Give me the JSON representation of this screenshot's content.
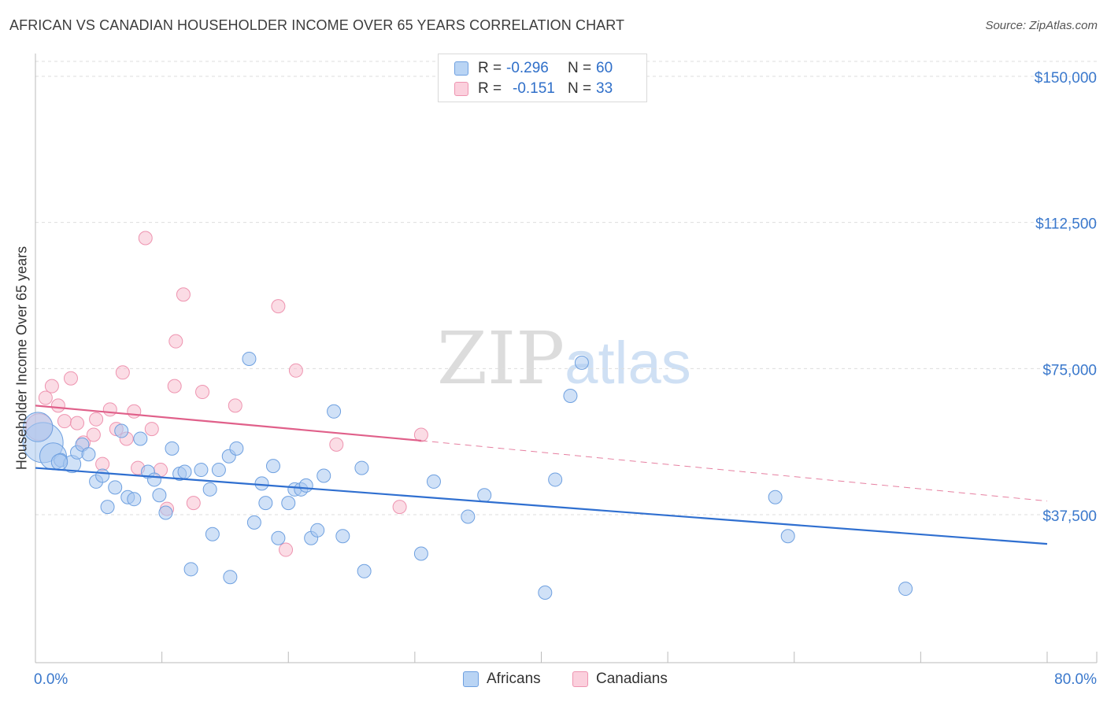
{
  "title": "AFRICAN VS CANADIAN HOUSEHOLDER INCOME OVER 65 YEARS CORRELATION CHART",
  "source": "Source: ZipAtlas.com",
  "watermark": {
    "zip": "ZIP",
    "atlas": "atlas"
  },
  "legend_top": {
    "rows": [
      {
        "r_label": "R =",
        "r_value": "-0.296",
        "n_label": "N =",
        "n_value": "60"
      },
      {
        "r_label": "R =",
        "r_value": "-0.151",
        "n_label": "N =",
        "n_value": "33"
      }
    ]
  },
  "legend_bottom": [
    "Africans",
    "Canadians"
  ],
  "colors": {
    "africans_fill": "#a9c9f0",
    "africans_stroke": "#6ea0e0",
    "africans_line": "#2f6fd0",
    "canadians_fill": "#f7bfd0",
    "canadians_stroke": "#ee94b0",
    "canadians_line": "#e0608a",
    "grid": "#dddddd",
    "tick_label": "#3a78cc"
  },
  "chart_data": {
    "type": "scatter",
    "title": "AFRICAN VS CANADIAN HOUSEHOLDER INCOME OVER 65 YEARS CORRELATION CHART",
    "xlabel": "",
    "ylabel": "Householder Income Over 65 years",
    "xlim": [
      0,
      80
    ],
    "ylim": [
      0,
      154000
    ],
    "x_tick_labels": [
      "0.0%",
      "80.0%"
    ],
    "y_ticks": [
      37500,
      75000,
      112500,
      150000
    ],
    "y_tick_labels": [
      "$37,500",
      "$75,000",
      "$112,500",
      "$150,000"
    ],
    "series": [
      {
        "name": "Africans",
        "points": [
          [
            0.6,
            56000,
            3
          ],
          [
            1.4,
            52500,
            2
          ],
          [
            2.0,
            51500,
            1
          ],
          [
            2.9,
            50500,
            1.3
          ],
          [
            3.3,
            53500,
            1
          ],
          [
            3.7,
            55500,
            1
          ],
          [
            4.2,
            53000,
            1
          ],
          [
            4.8,
            46000,
            1
          ],
          [
            5.3,
            47500,
            1
          ],
          [
            5.7,
            39500,
            1
          ],
          [
            6.3,
            44500,
            1
          ],
          [
            6.8,
            59000,
            1
          ],
          [
            7.3,
            42000,
            1
          ],
          [
            7.8,
            41500,
            1
          ],
          [
            8.3,
            57000,
            1
          ],
          [
            8.9,
            48500,
            1
          ],
          [
            9.4,
            46500,
            1
          ],
          [
            9.8,
            42500,
            1
          ],
          [
            10.3,
            38000,
            1
          ],
          [
            10.8,
            54500,
            1
          ],
          [
            11.4,
            48000,
            1
          ],
          [
            11.8,
            48500,
            1
          ],
          [
            12.3,
            23500,
            1
          ],
          [
            13.1,
            49000,
            1
          ],
          [
            13.8,
            44000,
            1
          ],
          [
            14.0,
            32500,
            1
          ],
          [
            14.5,
            49000,
            1
          ],
          [
            15.3,
            52500,
            1
          ],
          [
            15.4,
            21500,
            1
          ],
          [
            15.9,
            54500,
            1
          ],
          [
            16.9,
            77500,
            1
          ],
          [
            17.3,
            35500,
            1
          ],
          [
            17.9,
            45500,
            1
          ],
          [
            18.2,
            40500,
            1
          ],
          [
            18.8,
            50000,
            1
          ],
          [
            19.2,
            31500,
            1
          ],
          [
            20.0,
            40500,
            1
          ],
          [
            20.5,
            44000,
            1
          ],
          [
            21.0,
            44000,
            1
          ],
          [
            21.4,
            45000,
            1
          ],
          [
            21.8,
            31500,
            1
          ],
          [
            22.3,
            33500,
            1
          ],
          [
            22.8,
            47500,
            1
          ],
          [
            23.6,
            64000,
            1
          ],
          [
            24.3,
            32000,
            1
          ],
          [
            25.8,
            49500,
            1
          ],
          [
            26.0,
            23000,
            1
          ],
          [
            30.5,
            27500,
            1
          ],
          [
            31.5,
            46000,
            1
          ],
          [
            34.2,
            37000,
            1
          ],
          [
            35.5,
            42500,
            1
          ],
          [
            40.3,
            17500,
            1
          ],
          [
            41.1,
            46500,
            1
          ],
          [
            42.3,
            68000,
            1
          ],
          [
            43.2,
            76500,
            1
          ],
          [
            58.5,
            42000,
            1
          ],
          [
            59.5,
            32000,
            1
          ],
          [
            68.8,
            18500,
            1
          ],
          [
            0.2,
            60000,
            2.2
          ],
          [
            1.9,
            51000,
            1.2
          ]
        ],
        "trend": {
          "x0": 0,
          "y0": 49500,
          "x1": 80,
          "y1": 30000
        }
      },
      {
        "name": "Canadians",
        "points": [
          [
            0.3,
            60000,
            2
          ],
          [
            0.8,
            67500,
            1
          ],
          [
            1.3,
            70500,
            1
          ],
          [
            1.8,
            65500,
            1
          ],
          [
            2.3,
            61500,
            1
          ],
          [
            2.8,
            72500,
            1
          ],
          [
            3.3,
            61000,
            1
          ],
          [
            3.8,
            56000,
            1
          ],
          [
            4.6,
            58000,
            1
          ],
          [
            4.8,
            62000,
            1
          ],
          [
            5.3,
            50500,
            1
          ],
          [
            5.9,
            64500,
            1
          ],
          [
            6.4,
            59500,
            1
          ],
          [
            6.9,
            74000,
            1
          ],
          [
            7.2,
            57000,
            1
          ],
          [
            7.8,
            64000,
            1
          ],
          [
            8.1,
            49500,
            1
          ],
          [
            8.7,
            108500,
            1
          ],
          [
            9.2,
            59500,
            1
          ],
          [
            9.9,
            49000,
            1
          ],
          [
            10.4,
            39000,
            1
          ],
          [
            11.0,
            70500,
            1
          ],
          [
            11.1,
            82000,
            1
          ],
          [
            11.7,
            94000,
            1
          ],
          [
            12.5,
            40500,
            1
          ],
          [
            13.2,
            69000,
            1
          ],
          [
            15.8,
            65500,
            1
          ],
          [
            19.2,
            91000,
            1
          ],
          [
            19.8,
            28500,
            1
          ],
          [
            20.6,
            74500,
            1
          ],
          [
            23.8,
            55500,
            1
          ],
          [
            28.8,
            39500,
            1
          ],
          [
            30.5,
            58000,
            1
          ]
        ],
        "trend": {
          "x0": 0,
          "y0": 65500,
          "x1": 30.5,
          "y1": 56500
        },
        "trend_extension": {
          "x0": 30.5,
          "y0": 56500,
          "x1": 80,
          "y1": 41000
        }
      }
    ],
    "legend": [
      "Africans",
      "Canadians"
    ],
    "grid": true
  }
}
